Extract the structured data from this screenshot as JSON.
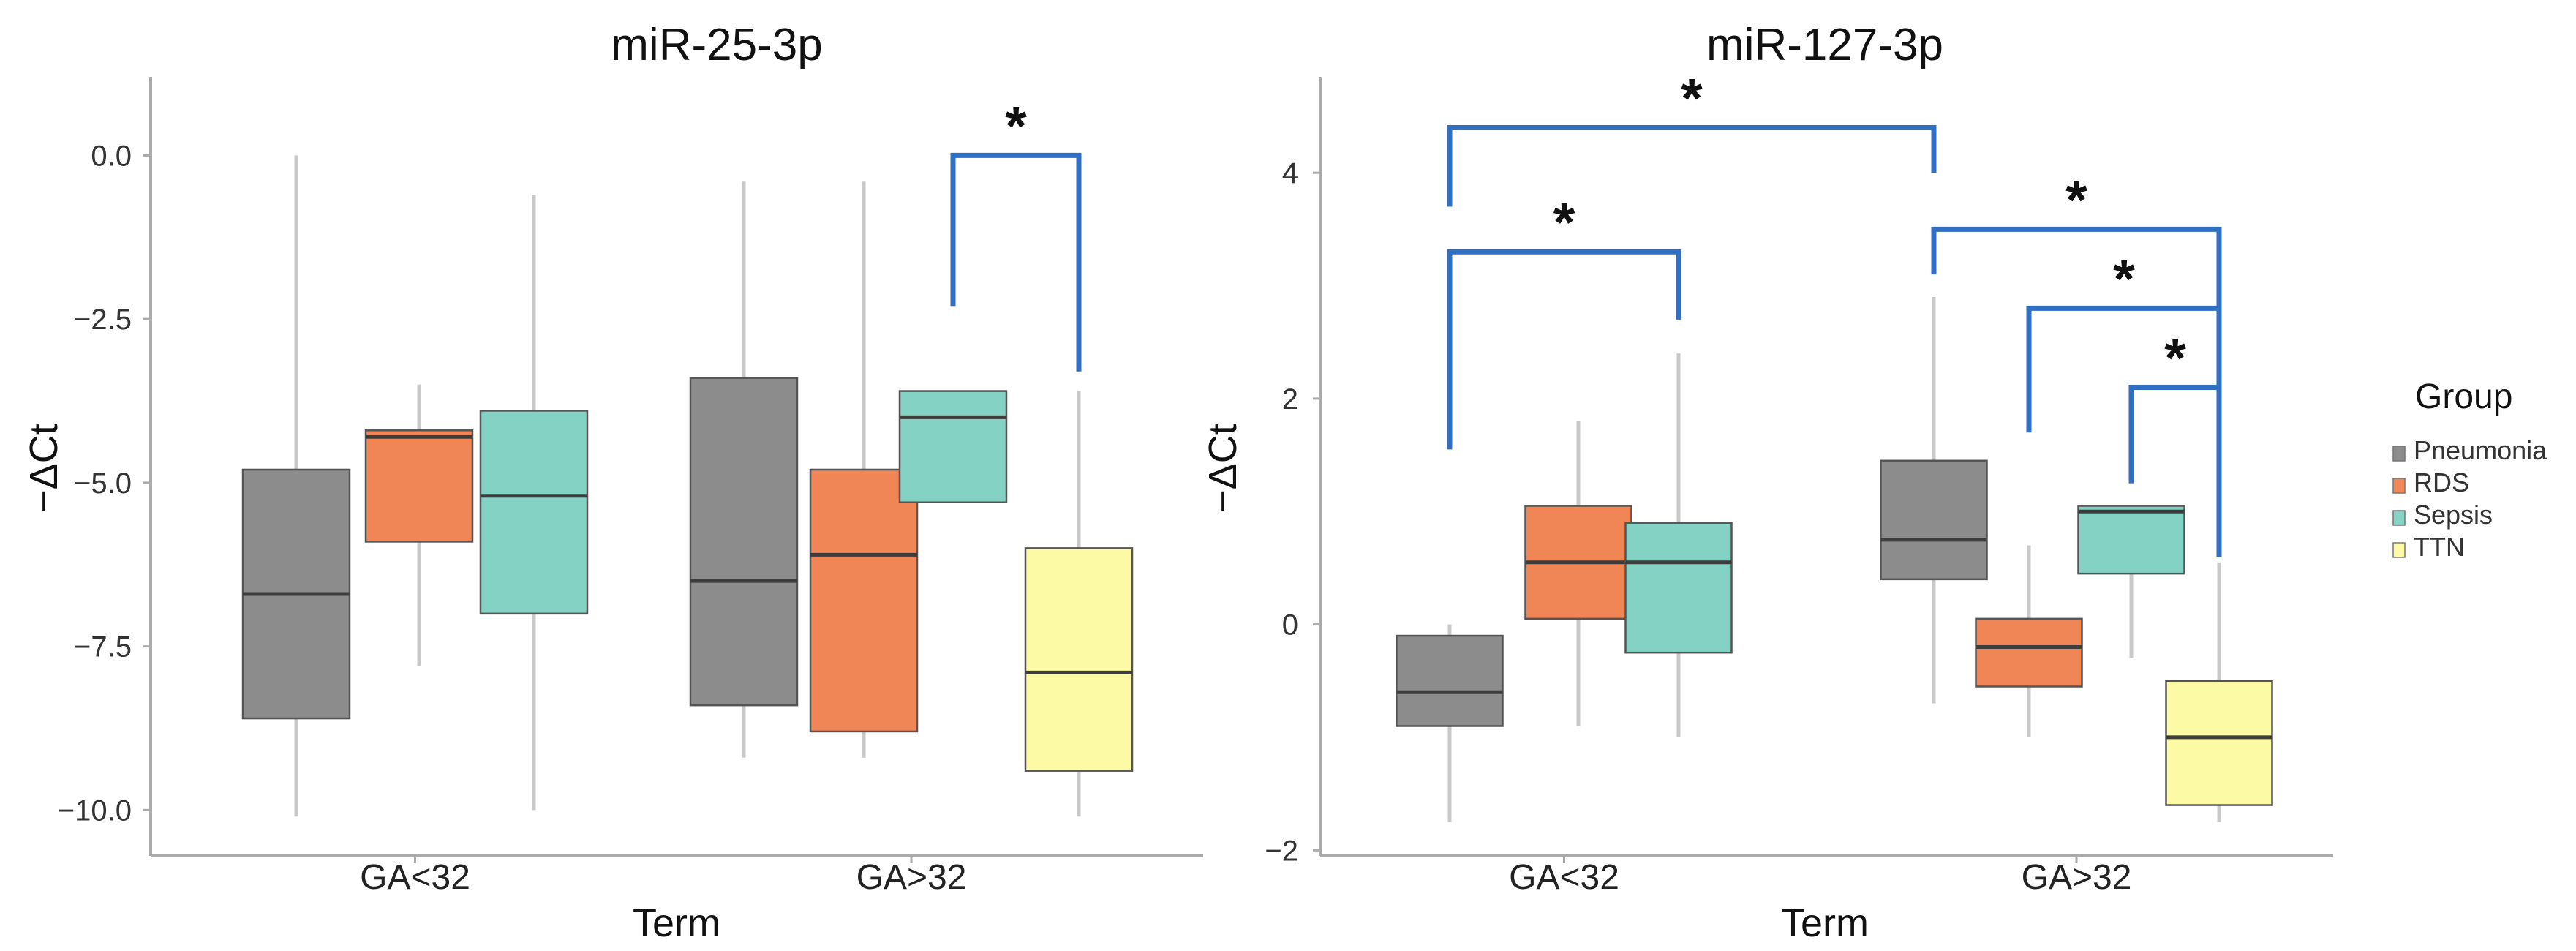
{
  "colors": {
    "Pneumonia": "#8c8c8c",
    "RDS": "#f08556",
    "Sepsis": "#83d2c4",
    "TTN": "#fcfaa4",
    "bracket": "#2f6fc4"
  },
  "legend": {
    "title": "Group",
    "items": [
      "Pneumonia",
      "RDS",
      "Sepsis",
      "TTN"
    ]
  },
  "chart_data": [
    {
      "type": "boxplot",
      "title": "miR-25-3p",
      "xlabel": "Term",
      "ylabel": "−ΔCt",
      "ylim": [
        -10.7,
        1.2
      ],
      "yticks": [
        0.0,
        -2.5,
        -5.0,
        -7.5,
        -10.0
      ],
      "ytick_labels": [
        "0.0",
        "−2.5",
        "−5.0",
        "−7.5",
        "−10.0"
      ],
      "categories": [
        "GA<32",
        "GA>32"
      ],
      "boxes": [
        {
          "category": "GA<32",
          "group": "Pneumonia",
          "min": -10.1,
          "q1": -8.6,
          "median": -6.7,
          "q3": -4.8,
          "max": 0.0
        },
        {
          "category": "GA<32",
          "group": "RDS",
          "min": -7.8,
          "q1": -5.9,
          "median": -4.3,
          "q3": -4.2,
          "max": -3.5
        },
        {
          "category": "GA<32",
          "group": "Sepsis",
          "min": -10.0,
          "q1": -7.0,
          "median": -5.2,
          "q3": -3.9,
          "max": -0.6
        },
        {
          "category": "GA>32",
          "group": "Pneumonia",
          "min": -9.2,
          "q1": -8.4,
          "median": -6.5,
          "q3": -3.4,
          "max": -0.4
        },
        {
          "category": "GA>32",
          "group": "RDS",
          "min": -9.2,
          "q1": -8.8,
          "median": -6.1,
          "q3": -4.8,
          "max": -0.4
        },
        {
          "category": "GA>32",
          "group": "Sepsis",
          "min": -5.3,
          "q1": -5.3,
          "median": -4.0,
          "q3": -3.6,
          "max": -3.6
        },
        {
          "category": "GA>32",
          "group": "TTN",
          "min": -10.1,
          "q1": -9.4,
          "median": -7.9,
          "q3": -6.0,
          "max": -3.6
        }
      ],
      "significance": [
        {
          "from": "GA>32|Sepsis",
          "to": "GA>32|TTN",
          "top": 0.0,
          "left_drop": -2.3,
          "right_drop": -3.3,
          "label": "*"
        }
      ]
    },
    {
      "type": "boxplot",
      "title": "miR-127-3p",
      "xlabel": "Term",
      "ylabel": "−ΔCt",
      "ylim": [
        -2.05,
        4.85
      ],
      "yticks": [
        4,
        2,
        0,
        -2
      ],
      "ytick_labels": [
        "4",
        "2",
        "0",
        "−2"
      ],
      "categories": [
        "GA<32",
        "GA>32"
      ],
      "boxes": [
        {
          "category": "GA<32",
          "group": "Pneumonia",
          "min": -1.75,
          "q1": -0.9,
          "median": -0.6,
          "q3": -0.1,
          "max": 0.0
        },
        {
          "category": "GA<32",
          "group": "RDS",
          "min": -0.9,
          "q1": 0.05,
          "median": 0.55,
          "q3": 1.05,
          "max": 1.8
        },
        {
          "category": "GA<32",
          "group": "Sepsis",
          "min": -1.0,
          "q1": -0.25,
          "median": 0.55,
          "q3": 0.9,
          "max": 2.4
        },
        {
          "category": "GA>32",
          "group": "Pneumonia",
          "min": -0.7,
          "q1": 0.4,
          "median": 0.75,
          "q3": 1.45,
          "max": 2.9
        },
        {
          "category": "GA>32",
          "group": "RDS",
          "min": -1.0,
          "q1": -0.55,
          "median": -0.2,
          "q3": 0.05,
          "max": 0.7
        },
        {
          "category": "GA>32",
          "group": "Sepsis",
          "min": -0.3,
          "q1": 0.45,
          "median": 1.0,
          "q3": 1.05,
          "max": 1.05
        },
        {
          "category": "GA>32",
          "group": "TTN",
          "min": -1.75,
          "q1": -1.6,
          "median": -1.0,
          "q3": -0.5,
          "max": 0.55
        }
      ],
      "significance": [
        {
          "from": "GA<32|Pneumonia",
          "to": "GA>32|Pneumonia",
          "top": 4.4,
          "left_drop": 3.7,
          "right_drop": 4.0,
          "label": "*"
        },
        {
          "from": "GA<32|Pneumonia",
          "to": "GA<32|Sepsis",
          "top": 3.3,
          "left_drop": 1.55,
          "right_drop": 2.7,
          "label": "*"
        },
        {
          "from": "GA>32|Pneumonia",
          "to": "GA>32|TTN",
          "top": 3.5,
          "left_drop": 3.1,
          "right_drop": 0.6,
          "label": "*"
        },
        {
          "from": "GA>32|RDS",
          "to": "GA>32|TTN",
          "top": 2.8,
          "left_drop": 1.7,
          "right_drop": 0.6,
          "label": "*"
        },
        {
          "from": "GA>32|Sepsis",
          "to": "GA>32|TTN",
          "top": 2.1,
          "left_drop": 1.25,
          "right_drop": 0.6,
          "label": "*"
        }
      ]
    }
  ]
}
